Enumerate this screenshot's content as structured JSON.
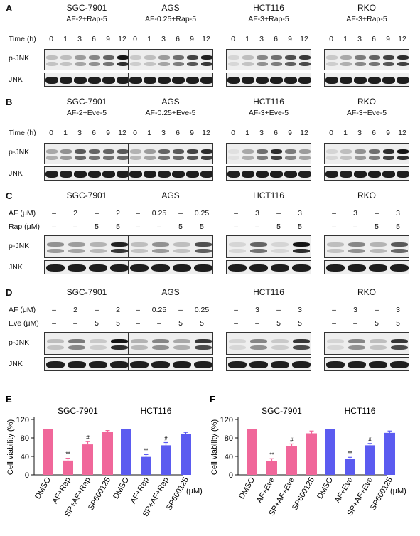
{
  "panels": {
    "A": {
      "letter": "A",
      "cells": [
        {
          "name": "SGC-7901",
          "cond": "AF-2+Rap-5"
        },
        {
          "name": "AGS",
          "cond": "AF-0.25+Rap-5"
        },
        {
          "name": "HCT116",
          "cond": "AF-3+Rap-5"
        },
        {
          "name": "RKO",
          "cond": "AF-3+Rap-5"
        }
      ],
      "time_label": "Time (h)",
      "time_points": [
        "0",
        "1",
        "3",
        "6",
        "9",
        "12"
      ],
      "pjnk_label": "p-JNK",
      "jnk_label": "JNK"
    },
    "B": {
      "letter": "B",
      "cells": [
        {
          "name": "SGC-7901",
          "cond": "AF-2+Eve-5"
        },
        {
          "name": "AGS",
          "cond": "AF-0.25+Eve-5"
        },
        {
          "name": "HCT116",
          "cond": "AF-3+Eve-5"
        },
        {
          "name": "RKO",
          "cond": "AF-3+Eve-5"
        }
      ],
      "time_label": "Time (h)",
      "time_points": [
        "0",
        "1",
        "3",
        "6",
        "9",
        "12"
      ],
      "pjnk_label": "p-JNK",
      "jnk_label": "JNK"
    },
    "C": {
      "letter": "C",
      "cells": [
        "SGC-7901",
        "AGS",
        "HCT116",
        "RKO"
      ],
      "row1_label": "AF (μM)",
      "row2_label": "Rap (μM)",
      "af_values": [
        [
          "–",
          "2",
          "–",
          "2"
        ],
        [
          "–",
          "0.25",
          "–",
          "0.25"
        ],
        [
          "–",
          "3",
          "–",
          "3"
        ],
        [
          "–",
          "3",
          "–",
          "3"
        ]
      ],
      "drug_values": [
        [
          "–",
          "–",
          "5",
          "5"
        ],
        [
          "–",
          "–",
          "5",
          "5"
        ],
        [
          "–",
          "–",
          "5",
          "5"
        ],
        [
          "–",
          "–",
          "5",
          "5"
        ]
      ],
      "pjnk_label": "p-JNK",
      "jnk_label": "JNK"
    },
    "D": {
      "letter": "D",
      "cells": [
        "SGC-7901",
        "AGS",
        "HCT116",
        "RKO"
      ],
      "row1_label": "AF (μM)",
      "row2_label": "Eve (μM)",
      "af_values": [
        [
          "–",
          "2",
          "–",
          "2"
        ],
        [
          "–",
          "0.25",
          "–",
          "0.25"
        ],
        [
          "–",
          "3",
          "–",
          "3"
        ],
        [
          "–",
          "3",
          "–",
          "3"
        ]
      ],
      "drug_values": [
        [
          "–",
          "–",
          "5",
          "5"
        ],
        [
          "–",
          "–",
          "5",
          "5"
        ],
        [
          "–",
          "–",
          "5",
          "5"
        ],
        [
          "–",
          "–",
          "5",
          "5"
        ]
      ],
      "pjnk_label": "p-JNK",
      "jnk_label": "JNK"
    }
  },
  "chart_data": [
    {
      "panel": "E",
      "type": "bar",
      "ylabel": "Cell viability (%)",
      "ylim": [
        0,
        120
      ],
      "yticks": [
        0,
        40,
        80,
        120
      ],
      "unit": "(μM)",
      "groups": [
        {
          "title": "SGC-7901",
          "color": "#f0679a",
          "categories": [
            "DMSO",
            "AF+Rap",
            "SP+AF+Rap",
            "SP600125"
          ],
          "values": [
            100,
            31,
            66,
            93
          ],
          "errors": [
            0,
            5,
            6,
            3
          ],
          "marks": [
            "",
            "**",
            "#",
            ""
          ]
        },
        {
          "title": "HCT116",
          "color": "#5b5bf0",
          "categories": [
            "DMSO",
            "AF+Rap",
            "SP+AF+Rap",
            "SP600125"
          ],
          "values": [
            100,
            39,
            64,
            88
          ],
          "errors": [
            0,
            5,
            6,
            4
          ],
          "marks": [
            "",
            "**",
            "#",
            ""
          ]
        }
      ]
    },
    {
      "panel": "F",
      "type": "bar",
      "ylabel": "Cell viability (%)",
      "ylim": [
        0,
        120
      ],
      "yticks": [
        0,
        40,
        80,
        120
      ],
      "unit": "(μM)",
      "groups": [
        {
          "title": "SGC-7901",
          "color": "#f0679a",
          "categories": [
            "DMSO",
            "AF+Eve",
            "SP+AF+Eve",
            "SP600125"
          ],
          "values": [
            100,
            30,
            63,
            90
          ],
          "errors": [
            0,
            5,
            4,
            5
          ],
          "marks": [
            "",
            "**",
            "#",
            ""
          ]
        },
        {
          "title": "HCT116",
          "color": "#5b5bf0",
          "categories": [
            "DMSO",
            "AF+Eve",
            "SP+AF+Eve",
            "SP600125"
          ],
          "values": [
            100,
            34,
            64,
            91
          ],
          "errors": [
            0,
            4,
            4,
            4
          ],
          "marks": [
            "",
            "**",
            "#",
            ""
          ]
        }
      ]
    }
  ],
  "blot_intensity": {
    "A": {
      "pjnk": [
        [
          0.2,
          0.2,
          0.35,
          0.45,
          0.6,
          0.95
        ],
        [
          0.15,
          0.2,
          0.35,
          0.55,
          0.75,
          0.9
        ],
        [
          0.1,
          0.2,
          0.45,
          0.55,
          0.7,
          0.8
        ],
        [
          0.15,
          0.3,
          0.5,
          0.6,
          0.75,
          0.85
        ]
      ]
    },
    "B": {
      "pjnk": [
        [
          0.3,
          0.4,
          0.65,
          0.6,
          0.6,
          0.65
        ],
        [
          0.25,
          0.35,
          0.6,
          0.65,
          0.75,
          0.85
        ],
        [
          0.05,
          0.3,
          0.55,
          0.85,
          0.5,
          0.35
        ],
        [
          0.1,
          0.2,
          0.4,
          0.55,
          0.85,
          0.95
        ]
      ]
    },
    "C": {
      "pjnk": [
        [
          0.4,
          0.35,
          0.25,
          0.9
        ],
        [
          0.2,
          0.4,
          0.2,
          0.7
        ],
        [
          0.1,
          0.6,
          0.1,
          0.95
        ],
        [
          0.2,
          0.45,
          0.25,
          0.65
        ]
      ]
    },
    "D": {
      "pjnk": [
        [
          0.2,
          0.5,
          0.15,
          0.95
        ],
        [
          0.25,
          0.45,
          0.3,
          0.8
        ],
        [
          0.1,
          0.45,
          0.15,
          0.8
        ],
        [
          0.1,
          0.45,
          0.2,
          0.8
        ]
      ]
    }
  }
}
